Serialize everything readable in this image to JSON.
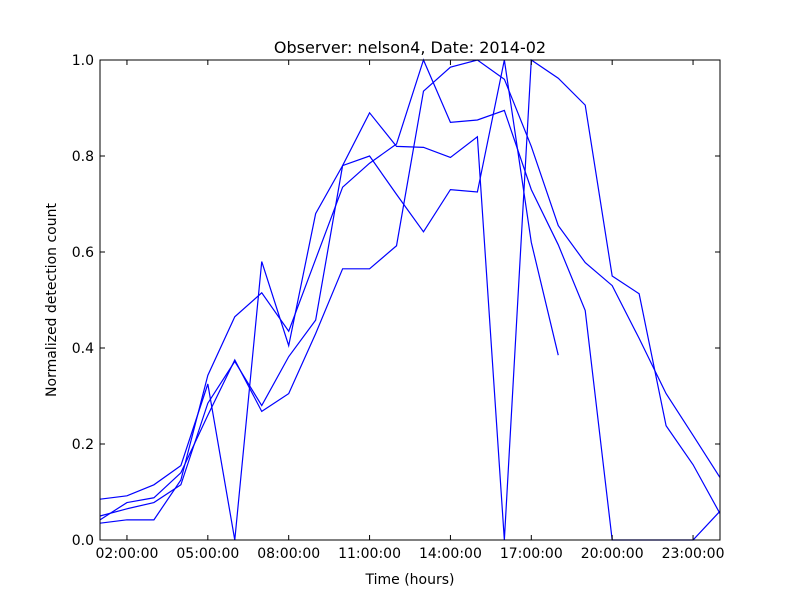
{
  "chart_data": {
    "type": "line",
    "title": "Observer: nelson4, Date: 2014-02",
    "xlabel": "Time (hours)",
    "ylabel": "Normalized detection count",
    "xlim": [
      "01:00:00",
      "24:00:00"
    ],
    "ylim": [
      0.0,
      1.0
    ],
    "x_tick_labels": [
      "02:00:00",
      "05:00:00",
      "08:00:00",
      "11:00:00",
      "14:00:00",
      "17:00:00",
      "20:00:00",
      "23:00:00"
    ],
    "y_tick_labels": [
      "0.0",
      "0.2",
      "0.4",
      "0.6",
      "0.8",
      "1.0"
    ],
    "grid": false,
    "legend": "none",
    "line_color": "#0000ff",
    "series": [
      {
        "x": [
          "01:00:00",
          "02:00:00",
          "03:00:00",
          "04:00:00",
          "05:00:00",
          "06:00:00",
          "07:00:00",
          "08:00:00",
          "09:00:00",
          "10:00:00",
          "11:00:00",
          "12:00:00",
          "13:00:00",
          "14:00:00",
          "15:00:00",
          "16:00:00",
          "17:00:00",
          "18:00:00"
        ],
        "y": [
          0.085,
          0.092,
          0.115,
          0.155,
          0.325,
          0.0,
          0.58,
          0.405,
          0.68,
          0.78,
          0.8,
          0.72,
          0.642,
          0.73,
          0.725,
          1.0,
          0.62,
          0.385
        ]
      },
      {
        "x": [
          "01:00:00",
          "02:00:00",
          "03:00:00",
          "04:00:00",
          "05:00:00",
          "06:00:00",
          "07:00:00",
          "08:00:00",
          "09:00:00",
          "10:00:00",
          "11:00:00",
          "12:00:00",
          "13:00:00",
          "14:00:00",
          "15:00:00",
          "16:00:00",
          "17:00:00",
          "18:00:00",
          "19:00:00",
          "20:00:00",
          "21:00:00",
          "22:00:00",
          "23:00:00",
          "24:00:00"
        ],
        "y": [
          0.05,
          0.065,
          0.078,
          0.115,
          0.285,
          0.372,
          0.28,
          0.382,
          0.458,
          0.78,
          0.89,
          0.82,
          0.818,
          0.797,
          0.84,
          0.0,
          1.0,
          0.962,
          0.906,
          0.55,
          0.513,
          0.238,
          0.157,
          0.055
        ]
      },
      {
        "x": [
          "01:00:00",
          "02:00:00",
          "03:00:00",
          "04:00:00",
          "05:00:00",
          "06:00:00",
          "07:00:00",
          "08:00:00",
          "09:00:00",
          "10:00:00",
          "11:00:00",
          "12:00:00",
          "13:00:00",
          "14:00:00",
          "15:00:00",
          "16:00:00",
          "17:00:00",
          "18:00:00",
          "19:00:00",
          "20:00:00",
          "21:00:00",
          "22:00:00",
          "23:00:00",
          "24:00:00"
        ],
        "y": [
          0.035,
          0.042,
          0.042,
          0.125,
          0.343,
          0.465,
          0.515,
          0.435,
          0.585,
          0.735,
          0.785,
          0.825,
          1.0,
          0.87,
          0.875,
          0.895,
          0.73,
          0.615,
          0.478,
          0.0,
          0.0,
          0.0,
          0.0,
          0.06
        ]
      },
      {
        "x": [
          "01:00:00",
          "02:00:00",
          "03:00:00",
          "04:00:00",
          "05:00:00",
          "06:00:00",
          "07:00:00",
          "08:00:00",
          "09:00:00",
          "10:00:00",
          "11:00:00",
          "12:00:00",
          "13:00:00",
          "14:00:00",
          "15:00:00",
          "16:00:00",
          "17:00:00",
          "18:00:00",
          "19:00:00",
          "20:00:00",
          "21:00:00",
          "22:00:00",
          "23:00:00",
          "24:00:00"
        ],
        "y": [
          0.042,
          0.078,
          0.088,
          0.14,
          0.26,
          0.375,
          0.268,
          0.305,
          0.43,
          0.565,
          0.565,
          0.613,
          0.935,
          0.985,
          1.0,
          0.96,
          0.82,
          0.655,
          0.578,
          0.53,
          0.42,
          0.305,
          0.218,
          0.13
        ]
      }
    ]
  }
}
